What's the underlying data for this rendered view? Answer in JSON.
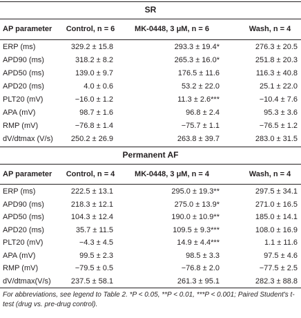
{
  "sections": [
    {
      "title": "SR",
      "headers": [
        "AP parameter",
        "Control, n = 6",
        "MK-0448, 3 μM, n = 6",
        "Wash, n = 4"
      ],
      "rows": [
        [
          "ERP (ms)",
          "329.2 ± 15.8",
          "293.3 ± 19.4*",
          "276.3 ± 20.5"
        ],
        [
          "APD90 (ms)",
          "318.2 ± 8.2",
          "265.3 ± 16.0*",
          "251.8 ± 20.3"
        ],
        [
          "APD50 (ms)",
          "139.0 ± 9.7",
          "176.5 ± 11.6",
          "116.3 ± 40.8"
        ],
        [
          "APD20 (ms)",
          "4.0 ± 0.6",
          "53.2 ± 22.0",
          "25.1 ± 22.0"
        ],
        [
          "PLT20 (mV)",
          "−16.0 ± 1.2",
          "11.3 ± 2.6***",
          "−10.4 ± 7.6"
        ],
        [
          "APA (mV)",
          "98.7 ± 1.6",
          "96.8 ± 2.4",
          "95.3 ± 3.6"
        ],
        [
          "RMP (mV)",
          "−76.8 ± 1.4",
          "−75.7 ± 1.1",
          "−76.5 ± 1.2"
        ],
        [
          "dV/dtmax (V/s)",
          "250.2 ± 26.9",
          "263.8 ± 39.7",
          "283.0 ± 31.5"
        ]
      ]
    },
    {
      "title": "Permanent AF",
      "headers": [
        "AP parameter",
        "Control, n = 4",
        "MK-0448, 3 μM, n = 4",
        "Wash, n = 4"
      ],
      "rows": [
        [
          "ERP (ms)",
          "222.5 ± 13.1",
          "295.0 ± 19.3**",
          "297.5 ± 34.1"
        ],
        [
          "APD90 (ms)",
          "218.3 ± 12.1",
          "275.0 ± 13.9*",
          "271.0 ± 16.5"
        ],
        [
          "APD50 (ms)",
          "104.3 ± 12.4",
          "190.0 ± 10.9**",
          "185.0 ± 14.1"
        ],
        [
          "APD20 (ms)",
          "35.7 ± 11.5",
          "109.5 ± 9.3***",
          "108.0 ± 16.9"
        ],
        [
          "PLT20 (mV)",
          "−4.3 ± 4.5",
          "14.9 ± 4.4***",
          "1.1 ± 11.6"
        ],
        [
          "APA (mV)",
          "99.5 ± 2.3",
          "98.5 ± 3.3",
          "97.5 ± 4.6"
        ],
        [
          "RMP (mV)",
          "−79.5 ± 0.5",
          "−76.8 ± 2.0",
          "−77.5 ± 2.5"
        ],
        [
          "dV/dtmax(V/s)",
          "237.5 ± 58.1",
          "261.3 ± 95.1",
          "282.3 ± 88.8"
        ]
      ]
    }
  ],
  "footnote": "For abbreviations, see legend to Table 2. *P < 0.05, **P < 0.01, ***P < 0.001; Paired Student's t-test (drug vs. pre-drug control)."
}
